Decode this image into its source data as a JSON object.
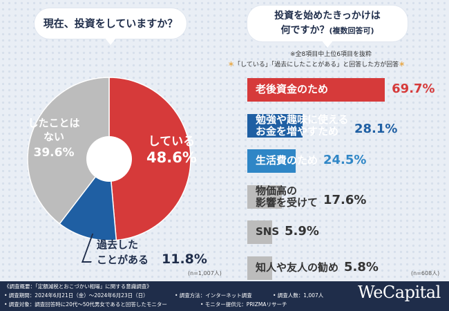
{
  "left": {
    "question": "現在、投資をしていますか？",
    "n_label": "(n=1,007人)"
  },
  "right": {
    "question_line1": "投資を始めたきっかけは",
    "question_line2": "何ですか？",
    "question_note": "(複数回答可)",
    "note1": "※全8項目中上位6項目を抜粋",
    "note2_star_l": "＊",
    "note2_text": "「している」「過去にしたことがある」と回答した方が回答",
    "note2_star_r": "＊",
    "n_label": "(n=608人)"
  },
  "chart_data": [
    {
      "type": "pie",
      "title": "現在、投資をしていますか？",
      "slices": [
        {
          "label": "している",
          "value": 48.6,
          "value_text": "48.6%",
          "color": "#d63a3a"
        },
        {
          "label": "過去したことがある",
          "label_line1": "過去した",
          "label_line2": "ことがある",
          "value": 11.8,
          "value_text": "11.8%",
          "color": "#1f5fa3"
        },
        {
          "label": "したことはない",
          "label_line1": "したことは",
          "label_line2": "ない",
          "value": 39.6,
          "value_text": "39.6%",
          "color": "#bcbcbc"
        }
      ],
      "n": "n=1,007人"
    },
    {
      "type": "bar",
      "orientation": "horizontal",
      "title": "投資を始めたきっかけは何ですか？(複数回答可)",
      "xlim": [
        0,
        70
      ],
      "categories": [
        {
          "label": "老後資金のため",
          "lines": [
            "老後資金のため"
          ],
          "value": 69.7,
          "value_text": "69.7%",
          "color": "#d63a3a",
          "text_color": "#ffffff",
          "value_color": "#d63a3a"
        },
        {
          "label": "勉強や趣味に使えるお金を増やすため",
          "lines": [
            "勉強や趣味に使える",
            "お金を増やすため"
          ],
          "value": 28.1,
          "value_text": "28.1%",
          "color": "#1f5fa3",
          "text_color": "#ffffff",
          "value_color": "#1f5fa3"
        },
        {
          "label": "生活費のため",
          "lines": [
            "生活費のため"
          ],
          "value": 24.5,
          "value_text": "24.5%",
          "color": "#2f86c6",
          "text_color": "#ffffff",
          "value_color": "#2f86c6"
        },
        {
          "label": "物価高の影響を受けて",
          "lines": [
            "物価高の",
            "影響を受けて"
          ],
          "value": 17.6,
          "value_text": "17.6%",
          "color": "#bcbcbc",
          "text_color": "#333333",
          "value_color": "#333333"
        },
        {
          "label": "SNS",
          "lines": [
            "SNS"
          ],
          "value": 5.9,
          "value_text": "5.9%",
          "color": "#bcbcbc",
          "text_color": "#333333",
          "value_color": "#333333"
        },
        {
          "label": "知人や友人の勧め",
          "lines": [
            "知人や友人の勧め"
          ],
          "value": 5.8,
          "value_text": "5.8%",
          "color": "#bcbcbc",
          "text_color": "#333333",
          "value_color": "#333333"
        }
      ],
      "n": "n=608人"
    }
  ],
  "footer": {
    "line1": "《調査概要：「定額減税とおこづかい相場」に関する意識調査》",
    "line2a": "• 調査期間：2024年6月21日（金）〜2024年6月23日（日）",
    "line2b": "• 調査方法：インターネット調査",
    "line2c": "• 調査人数：1,007人",
    "line3a": "• 調査対象：調査回答時に20代〜50代男女であると回答したモニター",
    "line3b": "• モニター提供元：PRIZMAリサーチ",
    "logo": "WeCapital"
  }
}
